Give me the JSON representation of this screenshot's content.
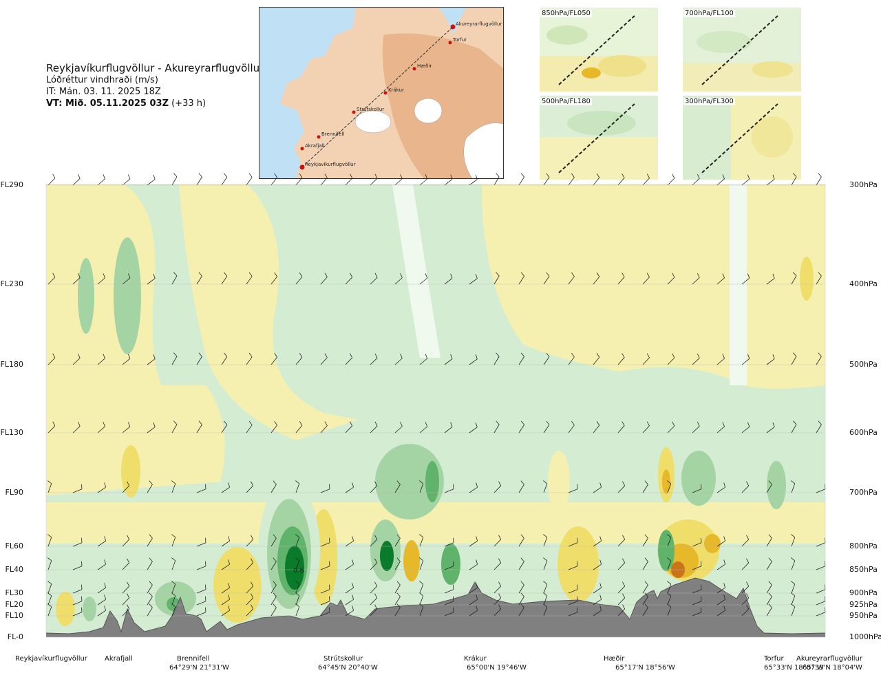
{
  "header": {
    "route": "Reykjavíkurflugvöllur - Akureyrarflugvöllur",
    "parameter": "Lóðréttur vindhraði (m/s)",
    "issue_time": "IT: Mán. 03. 11. 2025 18Z",
    "valid_time": "VT: Mið. 05.11.2025 03Z",
    "valid_offset": "(+33 h)"
  },
  "map": {
    "waypoints": [
      "Akureyrarflugvöllur",
      "Torfur",
      "Hæðir",
      "Krákur",
      "Strútskollur",
      "Brennifell",
      "Akrafjall",
      "Reykjavíkurflugvöllur"
    ],
    "colors": {
      "sea": "#bfe0f5",
      "land": "#f3d2b4",
      "high": "#e9b58c",
      "ice": "#ffffff",
      "route": "#cc1111"
    }
  },
  "thumbnails": [
    {
      "label": "850hPa/FL050"
    },
    {
      "label": "700hPa/FL100"
    },
    {
      "label": "500hPa/FL180"
    },
    {
      "label": "300hPa/FL300"
    }
  ],
  "chart_data": {
    "type": "heatmap",
    "title": "Lóðréttur vindhraði (m/s)",
    "xlabel": "",
    "ylabel": "",
    "y_left_ticks": [
      "FL290",
      "FL230",
      "FL180",
      "FL130",
      "FL90",
      "FL60",
      "FL40",
      "FL30",
      "FL20",
      "FL10",
      "FL-0"
    ],
    "y_right_ticks": [
      "300hPa",
      "400hPa",
      "500hPa",
      "600hPa",
      "700hPa",
      "800hPa",
      "850hPa",
      "900hPa",
      "925hPa",
      "950hPa",
      "1000hPa"
    ],
    "pressure_levels_hpa": [
      300,
      400,
      500,
      600,
      700,
      800,
      850,
      900,
      925,
      950,
      1000
    ],
    "flight_levels": [
      290,
      230,
      180,
      130,
      90,
      60,
      40,
      30,
      20,
      10,
      0
    ],
    "x_locations": [
      {
        "name": "Reykjavíkurflugvöllur",
        "coord": "",
        "dist": 0.0
      },
      {
        "name": "Akrafjall",
        "coord": "",
        "dist": 0.09
      },
      {
        "name": "Brennifell",
        "coord": "64°29'N 21°31'W",
        "dist": 0.18
      },
      {
        "name": "Strútskollur",
        "coord": "64°45'N 20°40'W",
        "dist": 0.38
      },
      {
        "name": "Krákur",
        "coord": "65°00'N 19°46'W",
        "dist": 0.56
      },
      {
        "name": "Hæðir",
        "coord": "65°17'N 18°56'W",
        "dist": 0.75
      },
      {
        "name": "Torfur",
        "coord": "65°33'N 18°07'W",
        "dist": 0.94
      },
      {
        "name": "Akureyrarflugvöllur",
        "coord": "65°39'N 18°04'W",
        "dist": 1.0
      }
    ],
    "annotation": "0.6",
    "colorscale": {
      "strong_sink": "#0a7a2b",
      "moderate_sink": "#5fb36a",
      "weak_sink": "#a5d4a4",
      "slight_sink": "#d4ecd2",
      "neutral": "#f0f9ee",
      "slight_lift": "#f6f0b0",
      "weak_lift": "#efdf6a",
      "moderate_lift": "#e7b82a",
      "strong_lift": "#c9741a"
    },
    "terrain_color": "#808080"
  }
}
